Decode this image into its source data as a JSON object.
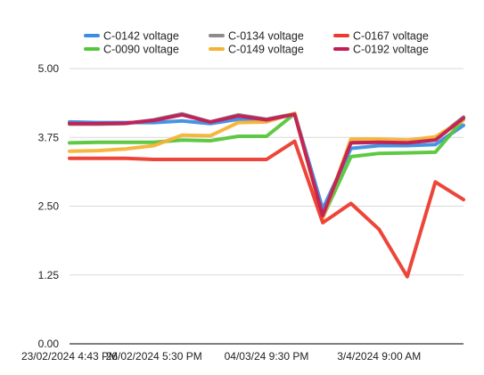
{
  "chart_data": {
    "type": "line",
    "title": "",
    "xlabel": "",
    "ylabel": "",
    "ylim": [
      0,
      5
    ],
    "yticks": [
      "0.00",
      "1.25",
      "2.50",
      "3.75",
      "5.00"
    ],
    "xticks": [
      {
        "index": 0,
        "label": "23/02/2024 4:43 PM"
      },
      {
        "index": 3,
        "label": "26/02/2024 5:30 PM"
      },
      {
        "index": 7,
        "label": "04/03/24 9:30 PM"
      },
      {
        "index": 11,
        "label": "3/4/2024 9:00 AM"
      }
    ],
    "grid": "horizontal",
    "legend_position": "top",
    "categories_count": 15,
    "series": [
      {
        "name": "C-0142 voltage",
        "color": "#3b8fe0",
        "values": [
          4.03,
          4.02,
          4.02,
          4.02,
          4.05,
          4.0,
          4.08,
          4.05,
          4.18,
          2.45,
          3.55,
          3.6,
          3.6,
          3.62,
          3.97
        ]
      },
      {
        "name": "C-0090 voltage",
        "color": "#56c63b",
        "values": [
          3.65,
          3.66,
          3.66,
          3.66,
          3.7,
          3.69,
          3.77,
          3.77,
          4.18,
          2.3,
          3.4,
          3.46,
          3.47,
          3.48,
          4.08
        ]
      },
      {
        "name": "C-0134 voltage",
        "color": "#8c8c8c",
        "values": [
          3.99,
          3.99,
          4.0,
          4.07,
          4.18,
          4.03,
          4.16,
          4.08,
          4.18,
          2.33,
          3.66,
          3.67,
          3.66,
          3.72,
          4.12
        ]
      },
      {
        "name": "C-0149 voltage",
        "color": "#f5b335",
        "values": [
          3.5,
          3.51,
          3.54,
          3.6,
          3.79,
          3.78,
          4.02,
          4.03,
          4.19,
          2.28,
          3.72,
          3.72,
          3.7,
          3.76,
          4.07
        ]
      },
      {
        "name": "C-0167 voltage",
        "color": "#ec3b2e",
        "values": [
          3.37,
          3.37,
          3.37,
          3.35,
          3.35,
          3.35,
          3.35,
          3.35,
          3.68,
          2.2,
          2.55,
          2.08,
          1.22,
          2.94,
          2.62
        ]
      },
      {
        "name": "C-0192 voltage",
        "color": "#c21e56",
        "values": [
          4.0,
          4.0,
          4.01,
          4.06,
          4.16,
          4.03,
          4.14,
          4.07,
          4.17,
          2.33,
          3.65,
          3.66,
          3.65,
          3.7,
          4.1
        ]
      }
    ]
  }
}
